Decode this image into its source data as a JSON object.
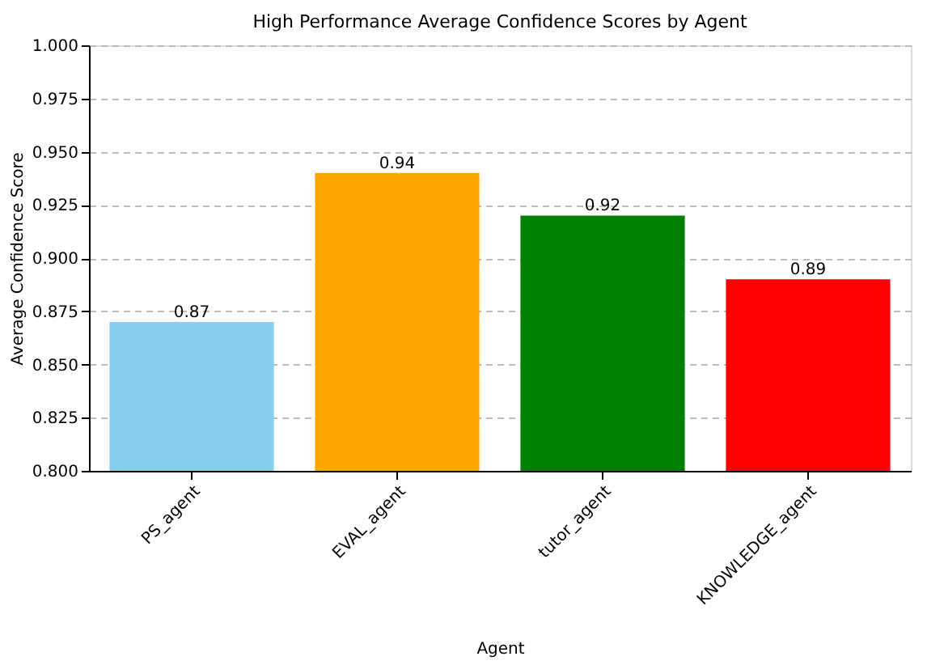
{
  "chart_data": {
    "type": "bar",
    "title": "High Performance Average Confidence Scores by Agent",
    "xlabel": "Agent",
    "ylabel": "Average Confidence Score",
    "categories": [
      "PS_agent",
      "EVAL_agent",
      "tutor_agent",
      "KNOWLEDGE_agent"
    ],
    "values": [
      0.87,
      0.94,
      0.92,
      0.89
    ],
    "colors": [
      "#87ceeb",
      "#ffa500",
      "#008000",
      "#ff0000"
    ],
    "ylim": [
      0.8,
      1.0
    ],
    "yticks": [
      {
        "value": 0.8,
        "label": "0.800"
      },
      {
        "value": 0.825,
        "label": "0.825"
      },
      {
        "value": 0.85,
        "label": "0.850"
      },
      {
        "value": 0.875,
        "label": "0.875"
      },
      {
        "value": 0.9,
        "label": "0.900"
      },
      {
        "value": 0.925,
        "label": "0.925"
      },
      {
        "value": 0.95,
        "label": "0.950"
      },
      {
        "value": 0.975,
        "label": "0.975"
      },
      {
        "value": 1.0,
        "label": "1.000"
      }
    ],
    "grid": "y",
    "data_labels": true
  }
}
